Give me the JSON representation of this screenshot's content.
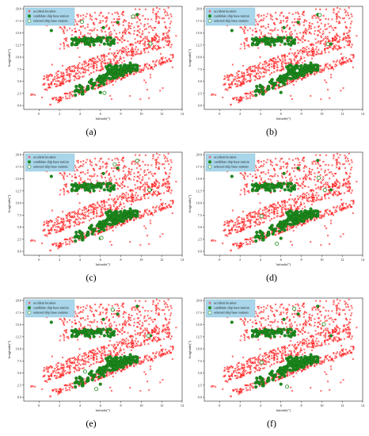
{
  "figure": {
    "captions": [
      "(a)",
      "(b)",
      "(c)",
      "(d)",
      "(e)",
      "(f)"
    ]
  },
  "chart_data": [
    {
      "type": "scatter",
      "panel": "(a)",
      "xlabel": "latitude(°)",
      "ylabel": "longitude(°)",
      "xlim": [
        -1.5,
        14
      ],
      "ylim": [
        -0.8,
        20.5
      ],
      "xticks": [
        "0",
        "2",
        "4",
        "6",
        "8",
        "10",
        "12",
        "14"
      ],
      "yticks": [
        "0.0",
        "2.5",
        "5.0",
        "7.5",
        "10.0",
        "12.5",
        "15.0",
        "17.5",
        "20.0"
      ],
      "legend": {
        "position": "top-left",
        "entries": [
          "accident location",
          "candidate ship base station",
          "selected ship base stations"
        ]
      },
      "series_colors": {
        "accident": "#ff2020",
        "candidate": "#1e8c1e",
        "selected": "#ffffff"
      },
      "selected_stations": [
        [
          4.2,
          17.3
        ],
        [
          9.2,
          18.4
        ],
        [
          10.9,
          12.8
        ],
        [
          6.4,
          2.6
        ]
      ]
    },
    {
      "type": "scatter",
      "panel": "(b)",
      "xlabel": "latitude(°)",
      "ylabel": "longitude(°)",
      "xlim": [
        -1.5,
        14
      ],
      "ylim": [
        -0.8,
        20.5
      ],
      "xticks": [
        "0",
        "2",
        "4",
        "6",
        "8",
        "10",
        "12",
        "14"
      ],
      "yticks": [
        "0.0",
        "2.5",
        "5.0",
        "7.5",
        "10.0",
        "12.5",
        "15.0",
        "17.5",
        "20.0"
      ],
      "legend": {
        "position": "top-left",
        "entries": [
          "accident location",
          "candidate ship base station",
          "selected ship base stations"
        ]
      },
      "series_colors": {
        "accident": "#ff2020",
        "candidate": "#1e8c1e",
        "selected": "#ffffff"
      },
      "selected_stations": [
        [
          9.8,
          18.7
        ],
        [
          10.6,
          12.7
        ],
        [
          6.0,
          4.3
        ],
        [
          7.6,
          7.2
        ]
      ]
    },
    {
      "type": "scatter",
      "panel": "(c)",
      "xlabel": "latitude(°)",
      "ylabel": "longitude(°)",
      "xlim": [
        -1.5,
        14
      ],
      "ylim": [
        -0.8,
        20.5
      ],
      "xticks": [
        "0",
        "2",
        "4",
        "6",
        "8",
        "10",
        "12",
        "14"
      ],
      "yticks": [
        "0.0",
        "2.5",
        "5.0",
        "7.5",
        "10.0",
        "12.5",
        "15.0",
        "17.5",
        "20.0"
      ],
      "legend": {
        "position": "top-left",
        "entries": [
          "accident location",
          "candidate ship base station",
          "selected ship base stations"
        ]
      },
      "series_colors": {
        "accident": "#ff2020",
        "candidate": "#1e8c1e",
        "selected": "#ffffff"
      },
      "selected_stations": [
        [
          7.4,
          18.0
        ],
        [
          9.6,
          18.7
        ],
        [
          10.8,
          12.7
        ],
        [
          6.1,
          2.8
        ]
      ]
    },
    {
      "type": "scatter",
      "panel": "(d)",
      "xlabel": "latitude(°)",
      "ylabel": "longitude(°)",
      "xlim": [
        -1.5,
        14
      ],
      "ylim": [
        -0.8,
        20.5
      ],
      "xticks": [
        "0",
        "2",
        "4",
        "6",
        "8",
        "10",
        "12",
        "14"
      ],
      "yticks": [
        "0.0",
        "2.5",
        "5.0",
        "7.5",
        "10.0",
        "12.5",
        "15.0",
        "17.5",
        "20.0"
      ],
      "legend": {
        "position": "top-left",
        "entries": [
          "accident location",
          "candidate ship base station",
          "selected ship base stations"
        ]
      },
      "series_colors": {
        "accident": "#ff2020",
        "candidate": "#1e8c1e",
        "selected": "#ffffff"
      },
      "selected_stations": [
        [
          9.7,
          15.2
        ],
        [
          10.3,
          12.7
        ],
        [
          5.6,
          1.6
        ],
        [
          4.1,
          7.3
        ]
      ]
    },
    {
      "type": "scatter",
      "panel": "(e)",
      "xlabel": "latitude(°)",
      "ylabel": "longitude(°)",
      "xlim": [
        -1.5,
        14
      ],
      "ylim": [
        -0.8,
        20.5
      ],
      "xticks": [
        "0",
        "2",
        "4",
        "6",
        "8",
        "10",
        "12",
        "14"
      ],
      "yticks": [
        "0.0",
        "2.5",
        "5.0",
        "7.5",
        "10.0",
        "12.5",
        "15.0",
        "17.5",
        "20.0"
      ],
      "legend": {
        "position": "top-left",
        "entries": [
          "accident location",
          "candidate ship base station",
          "selected ship base stations"
        ]
      },
      "series_colors": {
        "accident": "#ff2020",
        "candidate": "#1e8c1e",
        "selected": "#ffffff"
      },
      "selected_stations": [
        [
          7.2,
          18.1
        ],
        [
          10.7,
          12.7
        ],
        [
          5.6,
          1.7
        ],
        [
          4.5,
          5.3
        ]
      ]
    },
    {
      "type": "scatter",
      "panel": "(f)",
      "xlabel": "latitude(°)",
      "ylabel": "longitude(°)",
      "xlim": [
        -1.5,
        14
      ],
      "ylim": [
        -0.8,
        20.5
      ],
      "xticks": [
        "0",
        "2",
        "4",
        "6",
        "8",
        "10",
        "12",
        "14"
      ],
      "yticks": [
        "0.0",
        "2.5",
        "5.0",
        "7.5",
        "10.0",
        "12.5",
        "15.0",
        "17.5",
        "20.0"
      ],
      "legend": {
        "position": "top-left",
        "entries": [
          "accident location",
          "candidate ship base station",
          "selected ship base stations"
        ]
      },
      "series_colors": {
        "accident": "#ff2020",
        "candidate": "#1e8c1e",
        "selected": "#ffffff"
      },
      "selected_stations": [
        [
          7.3,
          18.3
        ],
        [
          10.2,
          15.1
        ],
        [
          6.6,
          2.2
        ],
        [
          4.1,
          7.2
        ]
      ]
    }
  ]
}
